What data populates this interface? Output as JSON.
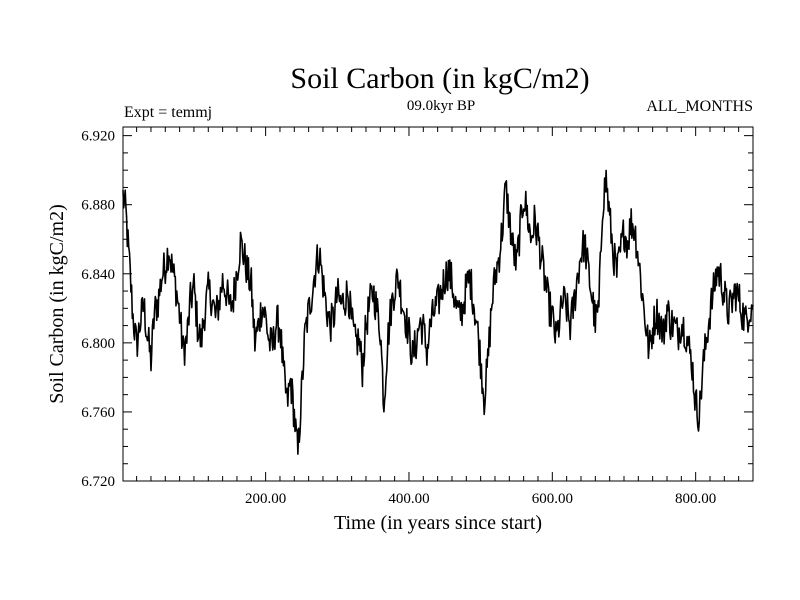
{
  "chart_data": {
    "type": "line",
    "title": "Soil Carbon (in kgC/m2)",
    "subtitle": "09.0kyr BP",
    "annotation_left": "Expt = temmj",
    "annotation_right": "ALL_MONTHS",
    "xlabel": "Time (in years since start)",
    "ylabel": "Soil Carbon (in kgC/m2)",
    "xlim": [
      1,
      880
    ],
    "ylim": [
      6.72,
      6.925
    ],
    "x_ticks": [
      200,
      400,
      600,
      800
    ],
    "x_tick_labels": [
      "200.00",
      "400.00",
      "600.00",
      "800.00"
    ],
    "y_ticks": [
      6.72,
      6.76,
      6.8,
      6.84,
      6.88,
      6.92
    ],
    "y_tick_labels": [
      "6.720",
      "6.760",
      "6.800",
      "6.840",
      "6.880",
      "6.920"
    ],
    "x_minor_step": 20,
    "y_minor_step": 0.01,
    "line_color": "#000000",
    "series": [
      {
        "name": "Soil Carbon",
        "x": [
          1,
          5,
          10,
          15,
          20,
          25,
          30,
          35,
          40,
          45,
          50,
          55,
          60,
          65,
          70,
          75,
          80,
          85,
          90,
          95,
          100,
          105,
          110,
          115,
          120,
          125,
          130,
          135,
          140,
          145,
          150,
          155,
          160,
          165,
          170,
          175,
          180,
          185,
          190,
          195,
          200,
          205,
          210,
          215,
          220,
          225,
          230,
          235,
          240,
          245,
          250,
          255,
          260,
          265,
          270,
          275,
          280,
          285,
          290,
          295,
          300,
          305,
          310,
          315,
          320,
          325,
          330,
          335,
          340,
          345,
          350,
          355,
          360,
          365,
          370,
          375,
          380,
          385,
          390,
          395,
          400,
          405,
          410,
          415,
          420,
          425,
          430,
          435,
          440,
          445,
          450,
          455,
          460,
          465,
          470,
          475,
          480,
          485,
          490,
          495,
          500,
          505,
          510,
          515,
          520,
          525,
          530,
          535,
          540,
          545,
          550,
          555,
          560,
          565,
          570,
          575,
          580,
          585,
          590,
          595,
          600,
          605,
          610,
          615,
          620,
          625,
          630,
          635,
          640,
          645,
          650,
          655,
          660,
          665,
          670,
          675,
          680,
          685,
          690,
          695,
          700,
          705,
          710,
          715,
          720,
          725,
          730,
          735,
          740,
          745,
          750,
          755,
          760,
          765,
          770,
          775,
          780,
          785,
          790,
          795,
          800,
          805,
          810,
          815,
          820,
          825,
          830,
          835,
          840,
          845,
          850,
          855,
          860,
          865,
          870,
          875,
          880
        ],
        "y": [
          6.885,
          6.875,
          6.845,
          6.815,
          6.798,
          6.812,
          6.822,
          6.804,
          6.79,
          6.818,
          6.824,
          6.838,
          6.845,
          6.855,
          6.842,
          6.832,
          6.816,
          6.795,
          6.802,
          6.824,
          6.832,
          6.81,
          6.8,
          6.818,
          6.83,
          6.826,
          6.815,
          6.823,
          6.836,
          6.83,
          6.82,
          6.826,
          6.842,
          6.858,
          6.85,
          6.84,
          6.833,
          6.8,
          6.81,
          6.822,
          6.815,
          6.8,
          6.798,
          6.812,
          6.81,
          6.782,
          6.765,
          6.778,
          6.758,
          6.735,
          6.77,
          6.805,
          6.818,
          6.83,
          6.845,
          6.852,
          6.835,
          6.82,
          6.81,
          6.815,
          6.828,
          6.822,
          6.825,
          6.83,
          6.812,
          6.8,
          6.802,
          6.785,
          6.81,
          6.822,
          6.83,
          6.82,
          6.808,
          6.765,
          6.8,
          6.82,
          6.832,
          6.838,
          6.825,
          6.815,
          6.805,
          6.792,
          6.8,
          6.812,
          6.808,
          6.795,
          6.81,
          6.818,
          6.822,
          6.83,
          6.838,
          6.842,
          6.835,
          6.822,
          6.815,
          6.82,
          6.832,
          6.838,
          6.825,
          6.81,
          6.79,
          6.768,
          6.788,
          6.82,
          6.838,
          6.848,
          6.865,
          6.89,
          6.872,
          6.855,
          6.845,
          6.865,
          6.885,
          6.875,
          6.86,
          6.87,
          6.862,
          6.848,
          6.835,
          6.822,
          6.815,
          6.802,
          6.812,
          6.825,
          6.82,
          6.81,
          6.822,
          6.838,
          6.852,
          6.858,
          6.842,
          6.828,
          6.812,
          6.82,
          6.88,
          6.895,
          6.872,
          6.852,
          6.84,
          6.852,
          6.865,
          6.858,
          6.87,
          6.866,
          6.85,
          6.83,
          6.812,
          6.795,
          6.808,
          6.818,
          6.812,
          6.805,
          6.82,
          6.812,
          6.81,
          6.805,
          6.812,
          6.808,
          6.798,
          6.788,
          6.765,
          6.758,
          6.785,
          6.802,
          6.818,
          6.83,
          6.842,
          6.838,
          6.828,
          6.818,
          6.822,
          6.83,
          6.826,
          6.818,
          6.812,
          6.82,
          6.822
        ]
      }
    ]
  }
}
